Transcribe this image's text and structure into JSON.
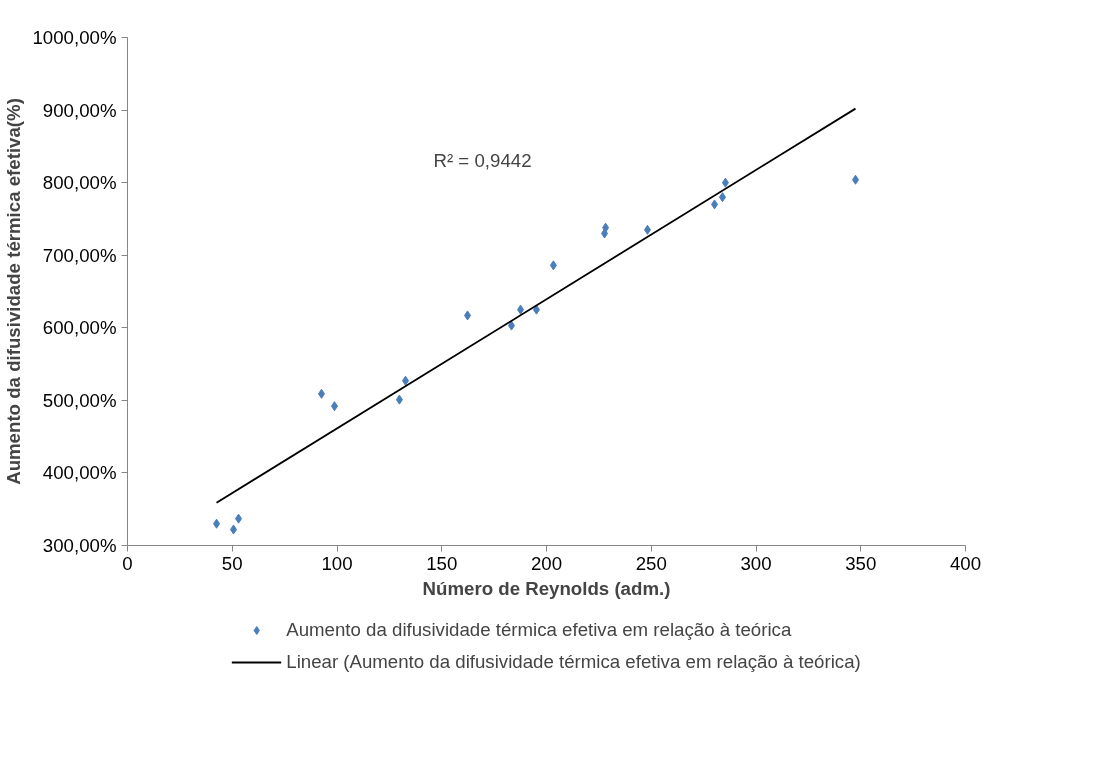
{
  "chart_data": {
    "type": "scatter",
    "xlabel": "Número de Reynolds (adm.)",
    "ylabel": "Aumento da difusividade térmica efetiva(%)",
    "marker": "diamond",
    "grid": false,
    "legend": "bottom",
    "xlim": [
      0,
      400
    ],
    "xticks": [
      0,
      50,
      100,
      150,
      200,
      250,
      300,
      350,
      400
    ],
    "ylim": [
      300,
      1000
    ],
    "yticks": [
      {
        "value": 300,
        "label": "300,00%"
      },
      {
        "value": 400,
        "label": "400,00%"
      },
      {
        "value": 500,
        "label": "500,00%"
      },
      {
        "value": 600,
        "label": "600,00%"
      },
      {
        "value": 700,
        "label": "700,00%"
      },
      {
        "value": 800,
        "label": "800,00%"
      },
      {
        "value": 900,
        "label": "900,00%"
      },
      {
        "value": 1000,
        "label": "1000,00%"
      }
    ],
    "series": [
      {
        "name": "Aumento da difusividade térmica efetiva em relação à teórica",
        "color": "#4a7ebb",
        "x": [
          42.5,
          50.6,
          53,
          92.6,
          98.8,
          129.8,
          132.7,
          162.3,
          183.3,
          187.6,
          195.2,
          203.3,
          227.7,
          228.2,
          248.2,
          280.2,
          284,
          285.4,
          347.5
        ],
        "values": [
          330,
          322,
          337,
          509,
          492,
          501,
          527,
          617,
          603,
          625,
          625,
          686,
          730,
          738,
          735,
          770,
          780,
          800,
          804
        ]
      },
      {
        "name": "Linear (Aumento da difusividade térmica efetiva em relação à teórica)",
        "color": "#000000",
        "type": "line",
        "marker": "none",
        "x": [
          42.5,
          347.5
        ],
        "values": [
          359,
          902
        ]
      }
    ],
    "annotations": [
      "R² = 0,9442"
    ]
  }
}
